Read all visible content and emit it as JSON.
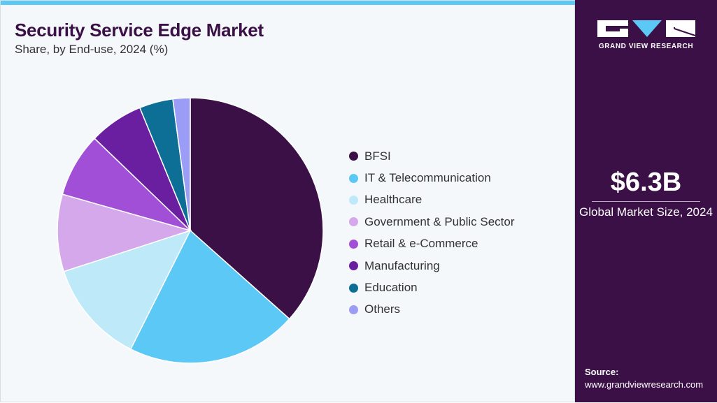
{
  "header": {
    "title": "Security Service Edge Market",
    "subtitle": "Share, by End-use, 2024 (%)"
  },
  "chart_data": {
    "type": "pie",
    "title": "Security Service Edge Market",
    "subtitle": "Share, by End-use, 2024 (%)",
    "categories": [
      "BFSI",
      "IT & Telecommunication",
      "Healthcare",
      "Government & Public Sector",
      "Retail & e-Commerce",
      "Manufacturing",
      "Education",
      "Others"
    ],
    "values": [
      36.6,
      20.8,
      12.6,
      9.4,
      7.8,
      6.6,
      4.1,
      2.1
    ],
    "colors": [
      "#3a1046",
      "#5bc8f5",
      "#bde9f9",
      "#d5a8ec",
      "#a24fd8",
      "#6a1fa0",
      "#0d6e96",
      "#9b9cf5"
    ],
    "legend_position": "right"
  },
  "sidebar": {
    "logo_text": "GRAND VIEW RESEARCH",
    "market_value": "$6.3B",
    "market_label": "Global Market Size, 2024",
    "source_label": "Source:",
    "source_url": "www.grandviewresearch.com"
  },
  "colors": {
    "brand": "#3a1046",
    "accent": "#5bc8f5"
  }
}
